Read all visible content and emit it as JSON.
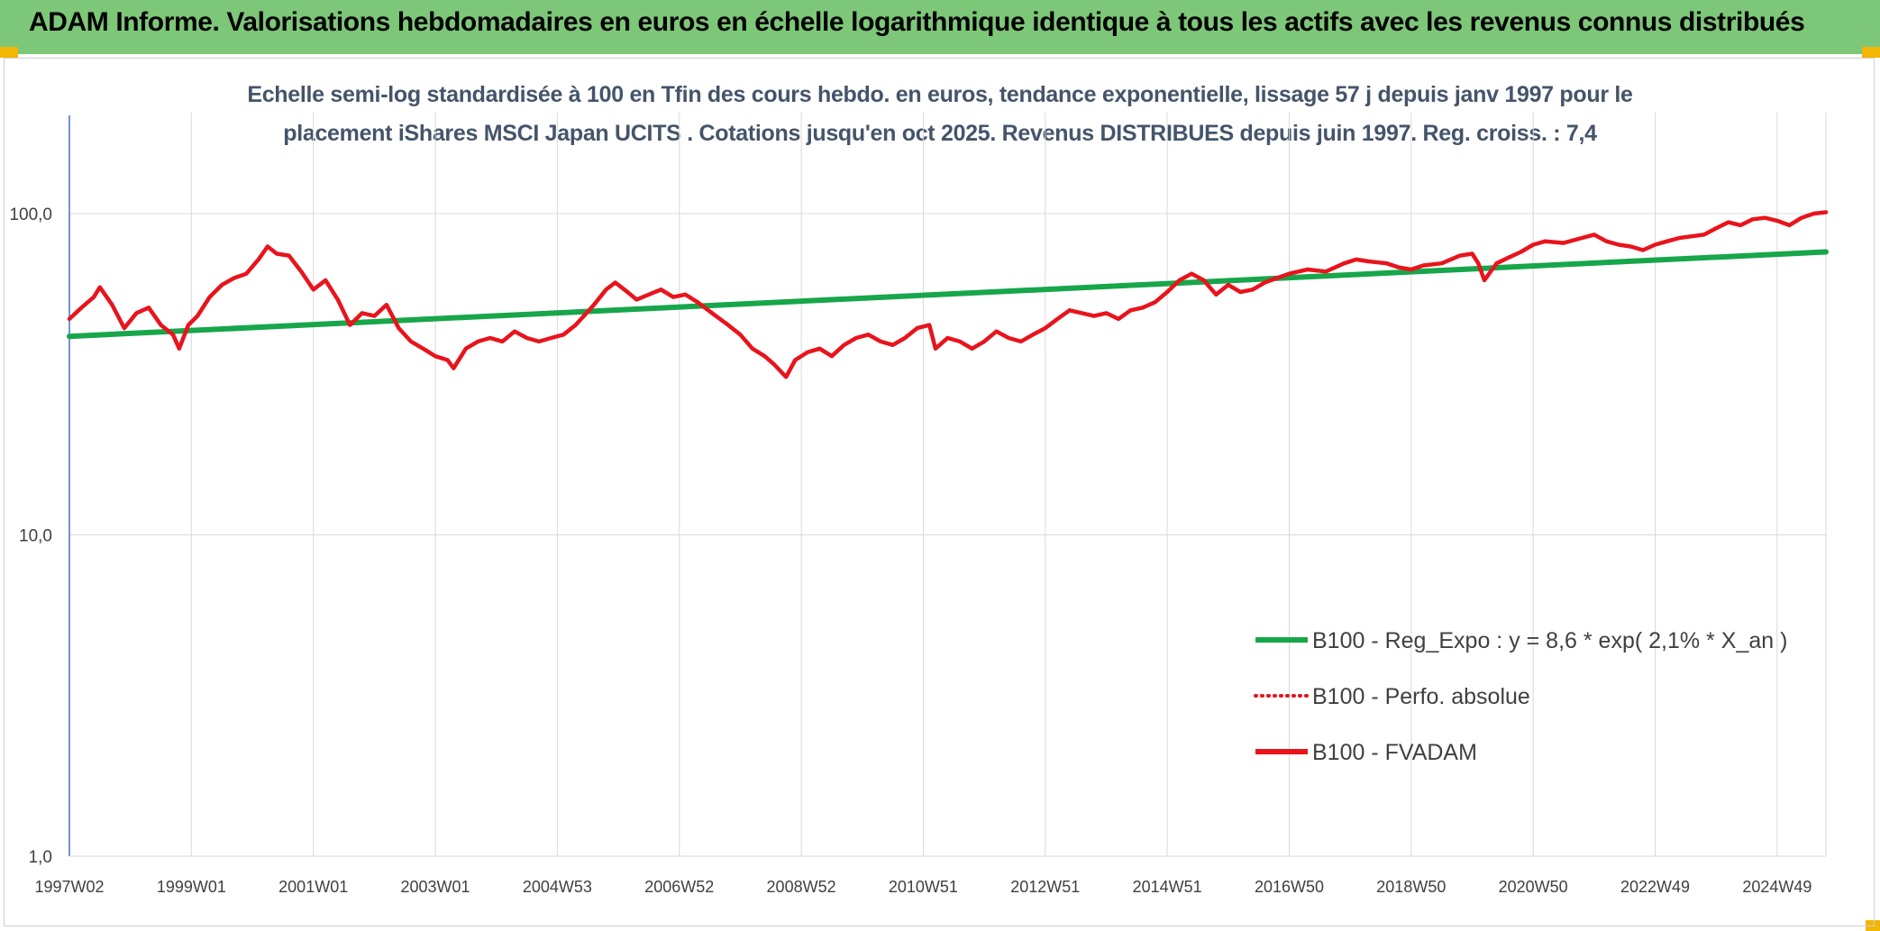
{
  "header": {
    "title": "ADAM Informe. Valorisations hebdomadaires en euros en échelle logarithmique identique à tous les actifs avec les revenus connus distribués"
  },
  "colors": {
    "banner": "#7dc778",
    "corner_accent": "#f2b705",
    "regression_line": "#17a64a",
    "fvadam_line": "#e8141c",
    "perf_line": "#e8141c",
    "subtitle_text": "#44546a",
    "gridline": "#d9d9d9",
    "axis_line": "#4472c4"
  },
  "chart_data": {
    "type": "line",
    "title_line1": "Echelle semi-log standardisée à 100 en Tfin des cours hebdo. en euros, tendance exponentielle, lissage 57 j depuis janv 1997 pour le",
    "title_line2": "placement iShares MSCI Japan UCITS . Cotations jusqu'en oct 2025. Revenus DISTRIBUES depuis juin 1997. Reg. croiss. : 7,4",
    "y_scale": "log",
    "ylim": [
      1,
      100
    ],
    "y_ticks": [
      {
        "value": 100,
        "label": "100,0"
      },
      {
        "value": 10,
        "label": "10,0"
      },
      {
        "value": 1,
        "label": "1,0"
      }
    ],
    "x_range": [
      1997.0,
      2025.8
    ],
    "x_ticks": [
      {
        "x": 1997.0,
        "label": "1997W02"
      },
      {
        "x": 1999.0,
        "label": "1999W01"
      },
      {
        "x": 2001.0,
        "label": "2001W01"
      },
      {
        "x": 2003.0,
        "label": "2003W01"
      },
      {
        "x": 2005.0,
        "label": "2004W53"
      },
      {
        "x": 2007.0,
        "label": "2006W52"
      },
      {
        "x": 2009.0,
        "label": "2008W52"
      },
      {
        "x": 2011.0,
        "label": "2010W51"
      },
      {
        "x": 2013.0,
        "label": "2012W51"
      },
      {
        "x": 2015.0,
        "label": "2014W51"
      },
      {
        "x": 2017.0,
        "label": "2016W50"
      },
      {
        "x": 2019.0,
        "label": "2018W50"
      },
      {
        "x": 2021.0,
        "label": "2020W50"
      },
      {
        "x": 2023.0,
        "label": "2022W49"
      },
      {
        "x": 2025.0,
        "label": "2024W49"
      }
    ],
    "grid": true,
    "legend_position": "bottom-right",
    "series": [
      {
        "name": "B100 - Reg_Expo : y = 8,6 * exp( 2,1% *  X_an )",
        "style": "solid",
        "points": [
          [
            1997.0,
            41.5
          ],
          [
            2025.8,
            76.0
          ]
        ]
      },
      {
        "name": "B100 - Perfo. absolue",
        "style": "dotted",
        "points": []
      },
      {
        "name": "B100 - FVADAM",
        "style": "solid",
        "points": [
          [
            1997.0,
            47
          ],
          [
            1997.2,
            51
          ],
          [
            1997.4,
            55
          ],
          [
            1997.5,
            59
          ],
          [
            1997.7,
            52
          ],
          [
            1997.9,
            44
          ],
          [
            1998.1,
            49
          ],
          [
            1998.3,
            51
          ],
          [
            1998.5,
            45
          ],
          [
            1998.7,
            42
          ],
          [
            1998.8,
            38
          ],
          [
            1998.95,
            45
          ],
          [
            1999.1,
            48
          ],
          [
            1999.3,
            55
          ],
          [
            1999.5,
            60
          ],
          [
            1999.7,
            63
          ],
          [
            1999.9,
            65
          ],
          [
            2000.1,
            72
          ],
          [
            2000.25,
            79
          ],
          [
            2000.4,
            75
          ],
          [
            2000.6,
            74
          ],
          [
            2000.8,
            66
          ],
          [
            2001.0,
            58
          ],
          [
            2001.2,
            62
          ],
          [
            2001.4,
            54
          ],
          [
            2001.6,
            45
          ],
          [
            2001.8,
            49
          ],
          [
            2002.0,
            48
          ],
          [
            2002.2,
            52
          ],
          [
            2002.4,
            44
          ],
          [
            2002.6,
            40
          ],
          [
            2002.8,
            38
          ],
          [
            2003.0,
            36
          ],
          [
            2003.2,
            35
          ],
          [
            2003.3,
            33
          ],
          [
            2003.5,
            38
          ],
          [
            2003.7,
            40
          ],
          [
            2003.9,
            41
          ],
          [
            2004.1,
            40
          ],
          [
            2004.3,
            43
          ],
          [
            2004.5,
            41
          ],
          [
            2004.7,
            40
          ],
          [
            2004.9,
            41
          ],
          [
            2005.1,
            42
          ],
          [
            2005.3,
            45
          ],
          [
            2005.6,
            52
          ],
          [
            2005.8,
            58
          ],
          [
            2005.95,
            61
          ],
          [
            2006.1,
            58
          ],
          [
            2006.3,
            54
          ],
          [
            2006.5,
            56
          ],
          [
            2006.7,
            58
          ],
          [
            2006.9,
            55
          ],
          [
            2007.1,
            56
          ],
          [
            2007.3,
            53
          ],
          [
            2007.6,
            48
          ],
          [
            2007.8,
            45
          ],
          [
            2008.0,
            42
          ],
          [
            2008.2,
            38
          ],
          [
            2008.4,
            36
          ],
          [
            2008.55,
            34
          ],
          [
            2008.75,
            31
          ],
          [
            2008.9,
            35
          ],
          [
            2009.1,
            37
          ],
          [
            2009.3,
            38
          ],
          [
            2009.5,
            36
          ],
          [
            2009.7,
            39
          ],
          [
            2009.9,
            41
          ],
          [
            2010.1,
            42
          ],
          [
            2010.3,
            40
          ],
          [
            2010.5,
            39
          ],
          [
            2010.7,
            41
          ],
          [
            2010.9,
            44
          ],
          [
            2011.1,
            45
          ],
          [
            2011.2,
            38
          ],
          [
            2011.4,
            41
          ],
          [
            2011.6,
            40
          ],
          [
            2011.8,
            38
          ],
          [
            2012.0,
            40
          ],
          [
            2012.2,
            43
          ],
          [
            2012.4,
            41
          ],
          [
            2012.6,
            40
          ],
          [
            2012.8,
            42
          ],
          [
            2013.0,
            44
          ],
          [
            2013.2,
            47
          ],
          [
            2013.4,
            50
          ],
          [
            2013.6,
            49
          ],
          [
            2013.8,
            48
          ],
          [
            2014.0,
            49
          ],
          [
            2014.2,
            47
          ],
          [
            2014.4,
            50
          ],
          [
            2014.6,
            51
          ],
          [
            2014.8,
            53
          ],
          [
            2015.0,
            57
          ],
          [
            2015.2,
            62
          ],
          [
            2015.4,
            65
          ],
          [
            2015.6,
            62
          ],
          [
            2015.8,
            56
          ],
          [
            2016.0,
            60
          ],
          [
            2016.2,
            57
          ],
          [
            2016.4,
            58
          ],
          [
            2016.6,
            61
          ],
          [
            2016.8,
            63
          ],
          [
            2017.0,
            65
          ],
          [
            2017.3,
            67
          ],
          [
            2017.6,
            66
          ],
          [
            2017.9,
            70
          ],
          [
            2018.1,
            72
          ],
          [
            2018.3,
            71
          ],
          [
            2018.6,
            70
          ],
          [
            2018.8,
            68
          ],
          [
            2019.0,
            67
          ],
          [
            2019.2,
            69
          ],
          [
            2019.5,
            70
          ],
          [
            2019.8,
            74
          ],
          [
            2020.0,
            75
          ],
          [
            2020.1,
            70
          ],
          [
            2020.2,
            62
          ],
          [
            2020.4,
            70
          ],
          [
            2020.6,
            73
          ],
          [
            2020.8,
            76
          ],
          [
            2021.0,
            80
          ],
          [
            2021.2,
            82
          ],
          [
            2021.5,
            81
          ],
          [
            2021.8,
            84
          ],
          [
            2022.0,
            86
          ],
          [
            2022.2,
            82
          ],
          [
            2022.4,
            80
          ],
          [
            2022.6,
            79
          ],
          [
            2022.8,
            77
          ],
          [
            2023.0,
            80
          ],
          [
            2023.2,
            82
          ],
          [
            2023.4,
            84
          ],
          [
            2023.6,
            85
          ],
          [
            2023.8,
            86
          ],
          [
            2024.0,
            90
          ],
          [
            2024.2,
            94
          ],
          [
            2024.4,
            92
          ],
          [
            2024.6,
            96
          ],
          [
            2024.8,
            97
          ],
          [
            2025.0,
            95
          ],
          [
            2025.2,
            92
          ],
          [
            2025.4,
            97
          ],
          [
            2025.6,
            100
          ],
          [
            2025.8,
            101
          ]
        ]
      }
    ]
  }
}
